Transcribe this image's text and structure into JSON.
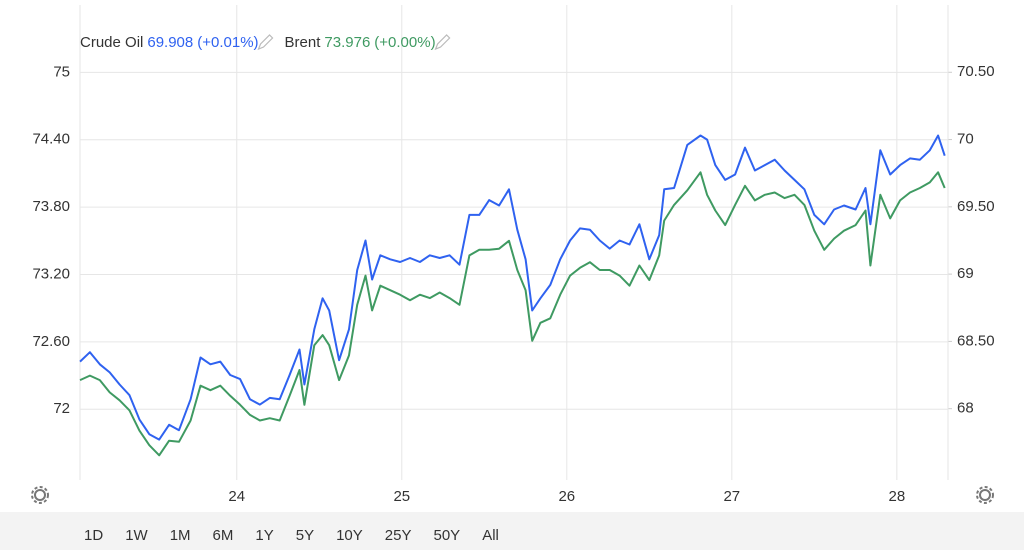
{
  "chart_data": {
    "type": "line",
    "x": [
      23.05,
      23.11,
      23.17,
      23.23,
      23.29,
      23.35,
      23.41,
      23.47,
      23.53,
      23.59,
      23.65,
      23.72,
      23.78,
      23.84,
      23.9,
      23.96,
      24.02,
      24.08,
      24.14,
      24.2,
      24.26,
      24.32,
      24.38,
      24.41,
      24.47,
      24.52,
      24.56,
      24.62,
      24.68,
      24.73,
      24.78,
      24.82,
      24.87,
      24.93,
      24.99,
      25.05,
      25.11,
      25.17,
      25.23,
      25.29,
      25.35,
      25.41,
      25.47,
      25.53,
      25.59,
      25.65,
      25.7,
      25.75,
      25.79,
      25.84,
      25.9,
      25.96,
      26.02,
      26.08,
      26.14,
      26.2,
      26.26,
      26.32,
      26.38,
      26.44,
      26.5,
      26.56,
      26.59,
      26.65,
      26.73,
      26.81,
      26.85,
      26.9,
      26.96,
      27.02,
      27.08,
      27.14,
      27.2,
      27.26,
      27.32,
      27.38,
      27.44,
      27.5,
      27.56,
      27.62,
      27.68,
      27.75,
      27.81,
      27.84,
      27.9,
      27.96,
      28.02,
      28.08,
      28.14,
      28.2,
      28.25,
      28.29
    ],
    "series": [
      {
        "name": "Crude Oil",
        "color": "#2f62f0",
        "axis": "y2",
        "last": 69.908,
        "change": "(+0.01%)",
        "values": [
          68.35,
          68.42,
          68.33,
          68.27,
          68.18,
          68.1,
          67.92,
          67.81,
          67.77,
          67.88,
          67.84,
          68.07,
          68.38,
          68.33,
          68.35,
          68.25,
          68.22,
          68.07,
          68.03,
          68.08,
          68.07,
          68.25,
          68.44,
          68.18,
          68.59,
          68.82,
          68.73,
          68.36,
          68.59,
          69.03,
          69.25,
          68.96,
          69.14,
          69.11,
          69.09,
          69.12,
          69.09,
          69.14,
          69.12,
          69.14,
          69.07,
          69.44,
          69.44,
          69.55,
          69.51,
          69.63,
          69.33,
          69.11,
          68.73,
          68.82,
          68.92,
          69.11,
          69.25,
          69.34,
          69.33,
          69.25,
          69.19,
          69.25,
          69.22,
          69.37,
          69.11,
          69.29,
          69.63,
          69.64,
          69.96,
          70.03,
          70.0,
          69.81,
          69.7,
          69.74,
          69.94,
          69.77,
          69.81,
          69.85,
          69.77,
          69.7,
          69.63,
          69.44,
          69.37,
          69.48,
          69.51,
          69.48,
          69.64,
          69.37,
          69.92,
          69.74,
          69.81,
          69.86,
          69.85,
          69.92,
          70.03,
          69.88
        ]
      },
      {
        "name": "Brent",
        "color": "#3f9a62",
        "last": 73.976,
        "change": "(+0.00%)",
        "values": [
          72.26,
          72.3,
          72.26,
          72.15,
          72.08,
          71.99,
          71.81,
          71.68,
          71.59,
          71.72,
          71.71,
          71.9,
          72.21,
          72.17,
          72.21,
          72.12,
          72.04,
          71.95,
          71.9,
          71.92,
          71.9,
          72.12,
          72.35,
          72.04,
          72.57,
          72.66,
          72.57,
          72.26,
          72.48,
          72.93,
          73.19,
          72.88,
          73.1,
          73.06,
          73.02,
          72.97,
          73.02,
          72.99,
          73.04,
          72.99,
          72.93,
          73.37,
          73.42,
          73.42,
          73.43,
          73.5,
          73.24,
          73.06,
          72.61,
          72.77,
          72.81,
          73.02,
          73.19,
          73.26,
          73.31,
          73.24,
          73.24,
          73.19,
          73.1,
          73.28,
          73.15,
          73.37,
          73.68,
          73.82,
          73.95,
          74.11,
          73.91,
          73.77,
          73.64,
          73.82,
          73.99,
          73.86,
          73.91,
          73.93,
          73.88,
          73.91,
          73.82,
          73.59,
          73.42,
          73.52,
          73.59,
          73.64,
          73.77,
          73.28,
          73.91,
          73.7,
          73.86,
          73.93,
          73.97,
          74.02,
          74.11,
          73.97
        ]
      }
    ],
    "xlim": [
      23.05,
      28.31
    ],
    "xticks": [
      24,
      25,
      26,
      27,
      28
    ],
    "ylim": [
      71.37,
      75.6
    ],
    "yticks": [
      72,
      {
        "value": 72.6,
        "label": "72.60"
      },
      {
        "value": 73.2,
        "label": "73.20"
      },
      {
        "value": 73.8,
        "label": "73.80"
      },
      {
        "value": 74.4,
        "label": "74.40"
      },
      75
    ],
    "y2lim": [
      67.47,
      71.0
    ],
    "y2ticks": [
      68,
      {
        "value": 68.5,
        "label": "68.50"
      },
      69,
      {
        "value": 69.5,
        "label": "69.50"
      },
      70,
      {
        "value": 70.5,
        "label": "70.50"
      }
    ],
    "grid": true,
    "ranges": [
      "1D",
      "1W",
      "1M",
      "6M",
      "1Y",
      "5Y",
      "10Y",
      "25Y",
      "50Y",
      "All"
    ],
    "selected_range": "1W"
  }
}
